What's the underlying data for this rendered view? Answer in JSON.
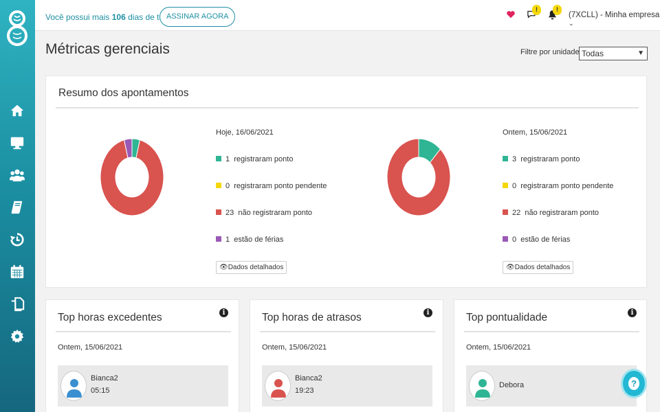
{
  "topbar": {
    "trial_prefix": "Você possui mais",
    "trial_days": "106",
    "trial_suffix": "dias de teste",
    "subscribe_label": "ASSINAR AGORA",
    "messages_badge": "!",
    "notifications_badge": "!",
    "company_label": "(7XCLL) - Minha empresa"
  },
  "page": {
    "title": "Métricas gerenciais",
    "filter_label": "Filtre por unidade:",
    "filter_value": "Todas"
  },
  "summary": {
    "title": "Resumo dos apontamentos",
    "detail_label": "Dados detalhados",
    "colors": {
      "registered": "#2fb594",
      "pending": "#f5d70b",
      "not_registered": "#d9534f",
      "vacation": "#9b59b6"
    },
    "today": {
      "date": "Hoje, 16/06/2021",
      "items": [
        {
          "count": "1",
          "label": "registraram ponto"
        },
        {
          "count": "0",
          "label": "registraram ponto pendente"
        },
        {
          "count": "23",
          "label": "não registraram ponto"
        },
        {
          "count": "1",
          "label": "estão de férias"
        }
      ]
    },
    "yesterday": {
      "date": "Ontem, 15/06/2021",
      "items": [
        {
          "count": "3",
          "label": "registraram ponto"
        },
        {
          "count": "0",
          "label": "registraram ponto pendente"
        },
        {
          "count": "22",
          "label": "não registraram ponto"
        },
        {
          "count": "0",
          "label": "estão de férias"
        }
      ]
    }
  },
  "overtime": {
    "title": "Top horas excedentes",
    "date": "Ontem, 15/06/2021",
    "person": {
      "name": "Bianca2",
      "time": "05:15",
      "color": "#3a8fd0"
    }
  },
  "delays": {
    "title": "Top horas de atrasos",
    "date": "Ontem, 15/06/2021",
    "person": {
      "name": "Bianca2",
      "time": "19:23",
      "color": "#d9534f"
    }
  },
  "punctuality": {
    "title": "Top pontualidade",
    "date": "Ontem, 15/06/2021",
    "person": {
      "name": "Debora",
      "color": "#2fb594"
    }
  }
}
